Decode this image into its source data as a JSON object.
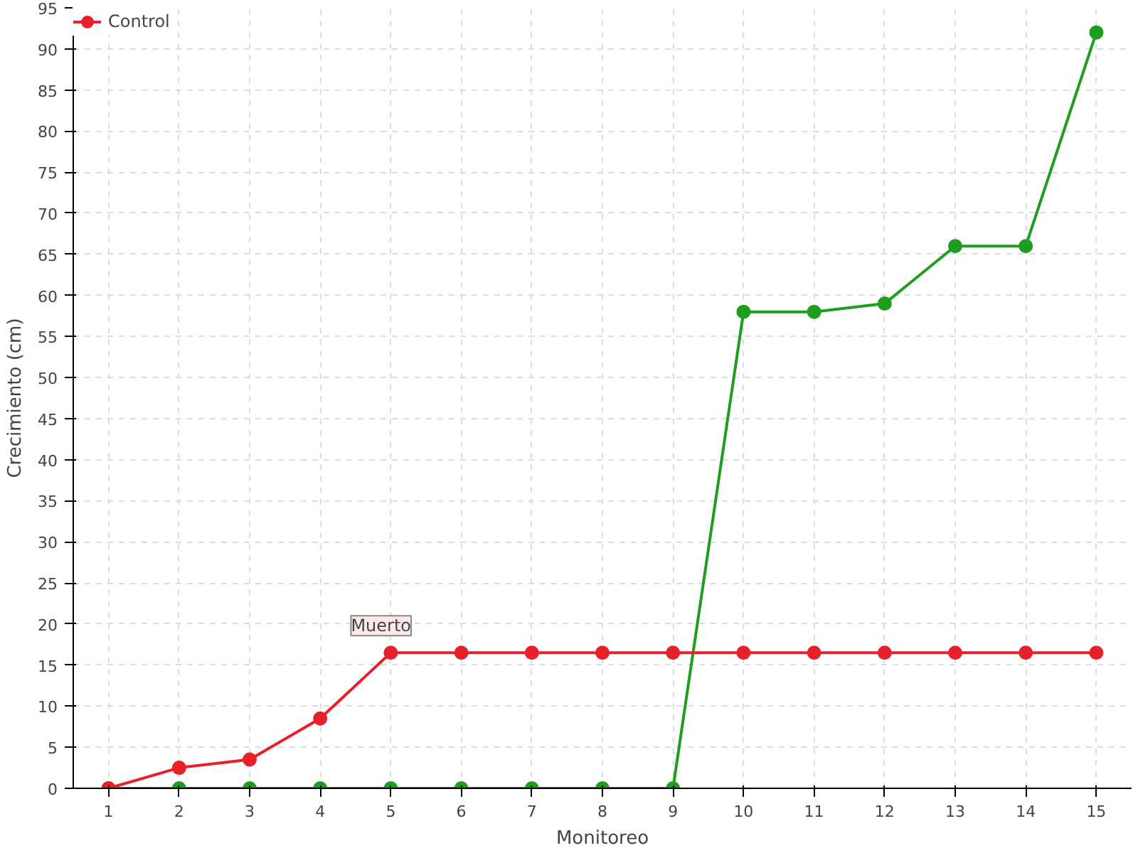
{
  "chart_data": {
    "type": "line",
    "xlabel": "Monitoreo",
    "ylabel": "Crecimiento (cm)",
    "x": [
      1,
      2,
      3,
      4,
      5,
      6,
      7,
      8,
      9,
      10,
      11,
      12,
      13,
      14,
      15
    ],
    "series": [
      {
        "color": "#1e9e1e",
        "values": [
          0,
          0,
          0,
          0,
          0,
          0,
          0,
          0,
          0,
          58,
          58,
          59,
          66,
          66,
          92
        ]
      },
      {
        "name": "Control",
        "color": "#e8202a",
        "values": [
          0,
          2.5,
          3.5,
          8.5,
          16.5,
          16.5,
          16.5,
          16.5,
          16.5,
          16.5,
          16.5,
          16.5,
          16.5,
          16.5,
          16.5
        ]
      }
    ],
    "xlim": [
      0.5,
      15.5
    ],
    "xticks": [
      1,
      2,
      3,
      4,
      5,
      6,
      7,
      8,
      9,
      10,
      11,
      12,
      13,
      14,
      15
    ],
    "ylim": [
      0,
      95
    ],
    "yticks": [
      0,
      5,
      10,
      15,
      20,
      25,
      30,
      35,
      40,
      45,
      50,
      55,
      60,
      65,
      70,
      75,
      80,
      85,
      90,
      95
    ],
    "annotations": [
      {
        "text": "Muerto",
        "x": 5,
        "y": 16.5
      }
    ],
    "grid": true,
    "legend": "top left",
    "marker": "circle",
    "line_style": "solid"
  }
}
